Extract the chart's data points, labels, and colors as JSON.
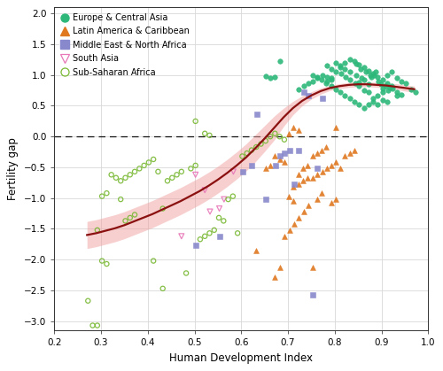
{
  "xlabel": "Human Development Index",
  "ylabel": "Fertility gap",
  "xlim": [
    0.2,
    1.0
  ],
  "ylim": [
    -3.15,
    2.1
  ],
  "xticks": [
    0.2,
    0.3,
    0.4,
    0.5,
    0.6,
    0.7,
    0.8,
    0.9,
    1.0
  ],
  "yticks": [
    -3.0,
    -2.5,
    -2.0,
    -1.5,
    -1.0,
    -0.5,
    0.0,
    0.5,
    1.0,
    1.5,
    2.0
  ],
  "background_color": "#ffffff",
  "grid_color": "#d8d8d8",
  "loess_line_color": "#8b1010",
  "loess_band_color": "#f0a0a0",
  "loess_band_alpha": 0.5,
  "hline_color": "#111111",
  "regions": {
    "Europe & Central Asia": {
      "color": "#2db87a",
      "marker": "o",
      "filled": true,
      "ms": 16,
      "data": [
        [
          0.852,
          0.88
        ],
        [
          0.863,
          0.92
        ],
        [
          0.872,
          0.85
        ],
        [
          0.878,
          0.97
        ],
        [
          0.883,
          1.0
        ],
        [
          0.888,
          1.05
        ],
        [
          0.893,
          0.9
        ],
        [
          0.898,
          0.85
        ],
        [
          0.903,
          0.78
        ],
        [
          0.908,
          0.82
        ],
        [
          0.913,
          0.75
        ],
        [
          0.918,
          0.8
        ],
        [
          0.858,
          0.95
        ],
        [
          0.845,
          1.0
        ],
        [
          0.833,
          1.05
        ],
        [
          0.822,
          1.1
        ],
        [
          0.812,
          1.15
        ],
        [
          0.803,
          1.2
        ],
        [
          0.793,
          0.95
        ],
        [
          0.783,
          0.9
        ],
        [
          0.876,
          1.0
        ],
        [
          0.866,
          1.05
        ],
        [
          0.856,
          1.1
        ],
        [
          0.846,
          1.18
        ],
        [
          0.924,
          0.78
        ],
        [
          0.933,
          0.72
        ],
        [
          0.942,
          0.68
        ],
        [
          0.903,
          0.6
        ],
        [
          0.912,
          0.57
        ],
        [
          0.892,
          0.52
        ],
        [
          0.882,
          0.62
        ],
        [
          0.872,
          0.72
        ],
        [
          0.862,
          0.75
        ],
        [
          0.852,
          0.82
        ],
        [
          0.843,
          0.87
        ],
        [
          0.833,
          0.92
        ],
        [
          0.823,
          0.97
        ],
        [
          0.813,
          1.02
        ],
        [
          0.803,
          1.05
        ],
        [
          0.793,
          1.1
        ],
        [
          0.783,
          1.15
        ],
        [
          0.773,
          1.0
        ],
        [
          0.763,
          0.95
        ],
        [
          0.753,
          0.9
        ],
        [
          0.743,
          0.87
        ],
        [
          0.733,
          0.82
        ],
        [
          0.723,
          0.77
        ],
        [
          0.912,
          1.0
        ],
        [
          0.922,
          1.05
        ],
        [
          0.932,
          0.95
        ],
        [
          0.942,
          0.9
        ],
        [
          0.952,
          0.87
        ],
        [
          0.892,
          0.67
        ],
        [
          0.902,
          0.72
        ],
        [
          0.882,
          0.57
        ],
        [
          0.872,
          0.52
        ],
        [
          0.862,
          0.47
        ],
        [
          0.852,
          0.52
        ],
        [
          0.842,
          0.57
        ],
        [
          0.832,
          0.62
        ],
        [
          0.822,
          0.67
        ],
        [
          0.812,
          0.72
        ],
        [
          0.802,
          0.77
        ],
        [
          0.792,
          0.82
        ],
        [
          0.782,
          0.87
        ],
        [
          0.772,
          0.92
        ],
        [
          0.762,
          0.97
        ],
        [
          0.752,
          1.0
        ],
        [
          0.922,
          0.82
        ],
        [
          0.912,
          0.87
        ],
        [
          0.902,
          0.92
        ],
        [
          0.892,
          0.97
        ],
        [
          0.882,
          1.02
        ],
        [
          0.872,
          1.07
        ],
        [
          0.862,
          1.12
        ],
        [
          0.852,
          1.17
        ],
        [
          0.842,
          1.22
        ],
        [
          0.832,
          1.25
        ],
        [
          0.822,
          1.2
        ],
        [
          0.812,
          1.12
        ],
        [
          0.963,
          0.77
        ],
        [
          0.972,
          0.72
        ],
        [
          0.933,
          0.67
        ],
        [
          0.793,
          0.92
        ],
        [
          0.783,
          0.97
        ],
        [
          0.653,
          0.98
        ],
        [
          0.672,
          0.97
        ],
        [
          0.682,
          1.22
        ],
        [
          0.662,
          0.95
        ]
      ]
    },
    "Latin America & Caribbean": {
      "color": "#e07820",
      "marker": "^",
      "filled": true,
      "ms": 18,
      "data": [
        [
          0.632,
          -1.85
        ],
        [
          0.672,
          -2.28
        ],
        [
          0.682,
          -2.12
        ],
        [
          0.702,
          -0.98
        ],
        [
          0.712,
          -1.05
        ],
        [
          0.722,
          -0.62
        ],
        [
          0.732,
          -0.52
        ],
        [
          0.742,
          -0.47
        ],
        [
          0.752,
          -0.32
        ],
        [
          0.762,
          -0.27
        ],
        [
          0.772,
          -0.22
        ],
        [
          0.782,
          -0.17
        ],
        [
          0.693,
          -1.62
        ],
        [
          0.703,
          -1.52
        ],
        [
          0.713,
          -1.42
        ],
        [
          0.723,
          -1.32
        ],
        [
          0.733,
          -1.22
        ],
        [
          0.743,
          -1.12
        ],
        [
          0.753,
          -0.67
        ],
        [
          0.763,
          -0.62
        ],
        [
          0.773,
          -0.57
        ],
        [
          0.783,
          -0.52
        ],
        [
          0.793,
          -0.47
        ],
        [
          0.802,
          -0.42
        ],
        [
          0.712,
          -0.82
        ],
        [
          0.722,
          -0.77
        ],
        [
          0.732,
          -0.72
        ],
        [
          0.742,
          -0.67
        ],
        [
          0.762,
          -1.02
        ],
        [
          0.772,
          -0.92
        ],
        [
          0.792,
          -1.07
        ],
        [
          0.802,
          -1.02
        ],
        [
          0.812,
          -0.52
        ],
        [
          0.822,
          -0.32
        ],
        [
          0.832,
          -0.27
        ],
        [
          0.842,
          -0.22
        ],
        [
          0.672,
          -0.32
        ],
        [
          0.682,
          -0.37
        ],
        [
          0.652,
          -0.52
        ],
        [
          0.662,
          -0.47
        ],
        [
          0.692,
          -0.42
        ],
        [
          0.702,
          0.05
        ],
        [
          0.712,
          0.15
        ],
        [
          0.722,
          0.1
        ],
        [
          0.802,
          0.15
        ],
        [
          0.752,
          -2.12
        ]
      ]
    },
    "Middle East & North Africa": {
      "color": "#8888cc",
      "marker": "s",
      "filled": true,
      "ms": 16,
      "data": [
        [
          0.502,
          -1.77
        ],
        [
          0.553,
          -1.62
        ],
        [
          0.603,
          -0.57
        ],
        [
          0.623,
          -0.47
        ],
        [
          0.633,
          0.37
        ],
        [
          0.653,
          -1.02
        ],
        [
          0.673,
          -0.47
        ],
        [
          0.683,
          -0.32
        ],
        [
          0.693,
          -0.27
        ],
        [
          0.703,
          -0.22
        ],
        [
          0.713,
          -0.77
        ],
        [
          0.723,
          -0.22
        ],
        [
          0.733,
          0.72
        ],
        [
          0.743,
          0.67
        ],
        [
          0.753,
          -2.57
        ],
        [
          0.763,
          -0.52
        ],
        [
          0.773,
          0.62
        ]
      ]
    },
    "South Asia": {
      "color": "#e878b8",
      "marker": "v",
      "filled": false,
      "ms": 18,
      "data": [
        [
          0.472,
          -1.62
        ],
        [
          0.502,
          -0.62
        ],
        [
          0.522,
          -0.87
        ],
        [
          0.533,
          -1.22
        ],
        [
          0.553,
          -1.17
        ],
        [
          0.563,
          -1.02
        ],
        [
          0.583,
          -0.57
        ]
      ]
    },
    "Sub-Saharan Africa": {
      "color": "#78b832",
      "marker": "o",
      "filled": false,
      "ms": 14,
      "data": [
        [
          0.272,
          -2.67
        ],
        [
          0.282,
          -3.07
        ],
        [
          0.292,
          -3.07
        ],
        [
          0.302,
          -2.02
        ],
        [
          0.312,
          -2.07
        ],
        [
          0.322,
          -0.62
        ],
        [
          0.332,
          -0.67
        ],
        [
          0.342,
          -0.72
        ],
        [
          0.352,
          -0.67
        ],
        [
          0.362,
          -0.62
        ],
        [
          0.372,
          -0.57
        ],
        [
          0.382,
          -0.52
        ],
        [
          0.392,
          -0.47
        ],
        [
          0.402,
          -0.42
        ],
        [
          0.412,
          -0.37
        ],
        [
          0.422,
          -0.57
        ],
        [
          0.432,
          -2.47
        ],
        [
          0.442,
          -0.72
        ],
        [
          0.452,
          -0.67
        ],
        [
          0.462,
          -0.62
        ],
        [
          0.472,
          -0.57
        ],
        [
          0.482,
          -2.22
        ],
        [
          0.492,
          -0.52
        ],
        [
          0.502,
          -0.47
        ],
        [
          0.512,
          -1.67
        ],
        [
          0.522,
          -1.62
        ],
        [
          0.532,
          -1.57
        ],
        [
          0.542,
          -1.52
        ],
        [
          0.552,
          -1.32
        ],
        [
          0.562,
          -1.37
        ],
        [
          0.572,
          -1.02
        ],
        [
          0.582,
          -0.97
        ],
        [
          0.592,
          -1.57
        ],
        [
          0.602,
          -0.32
        ],
        [
          0.612,
          -0.27
        ],
        [
          0.622,
          -0.22
        ],
        [
          0.632,
          -0.17
        ],
        [
          0.642,
          -0.12
        ],
        [
          0.652,
          -0.07
        ],
        [
          0.662,
          0.0
        ],
        [
          0.672,
          0.05
        ],
        [
          0.682,
          0.0
        ],
        [
          0.692,
          -0.05
        ],
        [
          0.342,
          -1.02
        ],
        [
          0.352,
          -1.37
        ],
        [
          0.362,
          -1.32
        ],
        [
          0.372,
          -1.27
        ],
        [
          0.412,
          -2.02
        ],
        [
          0.292,
          -1.52
        ],
        [
          0.302,
          -0.97
        ],
        [
          0.312,
          -0.92
        ],
        [
          0.432,
          -1.17
        ],
        [
          0.502,
          0.25
        ],
        [
          0.522,
          0.05
        ],
        [
          0.532,
          0.02
        ]
      ]
    }
  },
  "loess_x": [
    0.27,
    0.29,
    0.31,
    0.33,
    0.35,
    0.37,
    0.39,
    0.41,
    0.43,
    0.45,
    0.47,
    0.49,
    0.51,
    0.53,
    0.55,
    0.57,
    0.59,
    0.61,
    0.63,
    0.65,
    0.67,
    0.69,
    0.71,
    0.73,
    0.75,
    0.77,
    0.79,
    0.81,
    0.83,
    0.85,
    0.87,
    0.89,
    0.91,
    0.93,
    0.95,
    0.97
  ],
  "loess_y": [
    -1.6,
    -1.57,
    -1.53,
    -1.49,
    -1.44,
    -1.38,
    -1.32,
    -1.26,
    -1.19,
    -1.12,
    -1.05,
    -0.97,
    -0.89,
    -0.8,
    -0.7,
    -0.59,
    -0.47,
    -0.34,
    -0.19,
    -0.03,
    0.14,
    0.31,
    0.46,
    0.58,
    0.67,
    0.74,
    0.79,
    0.82,
    0.84,
    0.85,
    0.85,
    0.84,
    0.83,
    0.81,
    0.79,
    0.77
  ],
  "loess_upper": [
    -1.38,
    -1.35,
    -1.31,
    -1.27,
    -1.22,
    -1.16,
    -1.1,
    -1.04,
    -0.97,
    -0.9,
    -0.83,
    -0.75,
    -0.67,
    -0.58,
    -0.48,
    -0.37,
    -0.25,
    -0.12,
    0.03,
    0.18,
    0.33,
    0.46,
    0.57,
    0.66,
    0.73,
    0.79,
    0.83,
    0.86,
    0.88,
    0.89,
    0.89,
    0.88,
    0.87,
    0.86,
    0.84,
    0.82
  ],
  "loess_lower": [
    -1.82,
    -1.79,
    -1.75,
    -1.71,
    -1.66,
    -1.6,
    -1.54,
    -1.48,
    -1.41,
    -1.34,
    -1.27,
    -1.19,
    -1.11,
    -1.02,
    -0.92,
    -0.81,
    -0.69,
    -0.56,
    -0.41,
    -0.24,
    -0.06,
    0.16,
    0.35,
    0.5,
    0.61,
    0.69,
    0.75,
    0.78,
    0.8,
    0.81,
    0.81,
    0.8,
    0.79,
    0.77,
    0.74,
    0.72
  ]
}
